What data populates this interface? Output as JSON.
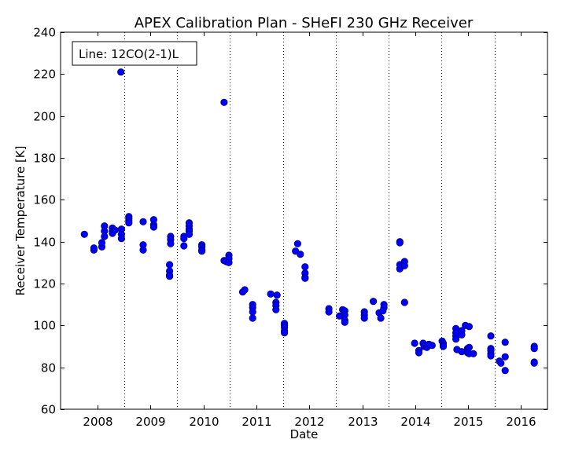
{
  "chart_data": {
    "type": "scatter",
    "title": "APEX Calibration Plan - SHeFI 230 GHz Receiver",
    "xlabel": "Date",
    "ylabel": "Receiver Temperature [K]",
    "annotation": "Line: 12CO(2-1)L",
    "xlim": [
      2007.3,
      2016.5
    ],
    "ylim": [
      60,
      240
    ],
    "x_ticks": [
      2008,
      2009,
      2010,
      2011,
      2012,
      2013,
      2014,
      2015,
      2016
    ],
    "x_tick_labels": [
      "2008",
      "2009",
      "2010",
      "2011",
      "2012",
      "2013",
      "2014",
      "2015",
      "2016"
    ],
    "y_ticks": [
      60,
      80,
      100,
      120,
      140,
      160,
      180,
      200,
      220,
      240
    ],
    "y_tick_labels": [
      "60",
      "80",
      "100",
      "120",
      "140",
      "160",
      "180",
      "200",
      "220",
      "240"
    ],
    "vlines": [
      2008.5,
      2009.5,
      2010.5,
      2011.5,
      2012.5,
      2013.5,
      2014.5,
      2015.5
    ],
    "grid": false,
    "marker_color": "#0000ff",
    "marker_edge_color": "#000080",
    "series": [
      {
        "points": [
          [
            2007.75,
            143.5
          ],
          [
            2007.93,
            136
          ],
          [
            2007.93,
            137
          ],
          [
            2008.08,
            137.5
          ],
          [
            2008.08,
            139.5
          ],
          [
            2008.13,
            147.5
          ],
          [
            2008.13,
            145
          ],
          [
            2008.13,
            142.5
          ],
          [
            2008.28,
            146.5
          ],
          [
            2008.28,
            145
          ],
          [
            2008.28,
            144
          ],
          [
            2008.33,
            145.5
          ],
          [
            2008.44,
            221
          ],
          [
            2008.45,
            146
          ],
          [
            2008.45,
            143.5
          ],
          [
            2008.45,
            141.5
          ],
          [
            2008.59,
            152
          ],
          [
            2008.59,
            151
          ],
          [
            2008.59,
            150
          ],
          [
            2008.59,
            149
          ],
          [
            2008.86,
            149.5
          ],
          [
            2008.86,
            138.5
          ],
          [
            2008.86,
            136
          ],
          [
            2009.06,
            150.5
          ],
          [
            2009.06,
            148
          ],
          [
            2009.06,
            147
          ],
          [
            2009.38,
            142.5
          ],
          [
            2009.38,
            141
          ],
          [
            2009.38,
            139
          ],
          [
            2009.36,
            129
          ],
          [
            2009.36,
            126
          ],
          [
            2009.36,
            124
          ],
          [
            2009.36,
            123.5
          ],
          [
            2009.63,
            142.5
          ],
          [
            2009.63,
            141.5
          ],
          [
            2009.63,
            138
          ],
          [
            2009.73,
            149
          ],
          [
            2009.73,
            147.5
          ],
          [
            2009.73,
            146
          ],
          [
            2009.73,
            145
          ],
          [
            2009.73,
            143.5
          ],
          [
            2009.97,
            138.5
          ],
          [
            2009.97,
            137.5
          ],
          [
            2009.97,
            136
          ],
          [
            2009.97,
            135.5
          ],
          [
            2010.39,
            206.5
          ],
          [
            2010.39,
            131
          ],
          [
            2010.43,
            130.5
          ],
          [
            2010.48,
            133.5
          ],
          [
            2010.48,
            132
          ],
          [
            2010.48,
            130
          ],
          [
            2010.74,
            116
          ],
          [
            2010.78,
            117
          ],
          [
            2010.93,
            110
          ],
          [
            2010.93,
            108.5
          ],
          [
            2010.93,
            106.5
          ],
          [
            2010.93,
            103.5
          ],
          [
            2011.27,
            115
          ],
          [
            2011.39,
            114.5
          ],
          [
            2011.37,
            111
          ],
          [
            2011.37,
            109.5
          ],
          [
            2011.37,
            107.5
          ],
          [
            2011.53,
            101
          ],
          [
            2011.53,
            100
          ],
          [
            2011.53,
            99
          ],
          [
            2011.53,
            97.5
          ],
          [
            2011.53,
            96.5
          ],
          [
            2011.74,
            135.5
          ],
          [
            2011.78,
            139
          ],
          [
            2011.83,
            134
          ],
          [
            2011.92,
            128
          ],
          [
            2011.92,
            125
          ],
          [
            2011.92,
            123
          ],
          [
            2011.92,
            122.5
          ],
          [
            2012.37,
            108
          ],
          [
            2012.37,
            106.5
          ],
          [
            2012.57,
            104.5
          ],
          [
            2012.63,
            107.5
          ],
          [
            2012.67,
            107
          ],
          [
            2012.67,
            105
          ],
          [
            2012.67,
            102.5
          ],
          [
            2012.67,
            101.5
          ],
          [
            2013.04,
            106.5
          ],
          [
            2013.04,
            105
          ],
          [
            2013.04,
            103.5
          ],
          [
            2013.21,
            111.5
          ],
          [
            2013.32,
            106
          ],
          [
            2013.35,
            103.5
          ],
          [
            2013.41,
            110
          ],
          [
            2013.41,
            108.5
          ],
          [
            2013.39,
            107
          ],
          [
            2013.71,
            140
          ],
          [
            2013.71,
            139.5
          ],
          [
            2013.71,
            129
          ],
          [
            2013.71,
            127
          ],
          [
            2013.76,
            128.5
          ],
          [
            2013.8,
            130.5
          ],
          [
            2013.8,
            128.5
          ],
          [
            2013.8,
            111
          ],
          [
            2013.99,
            91.5
          ],
          [
            2014.07,
            88
          ],
          [
            2014.07,
            87
          ],
          [
            2014.15,
            91.5
          ],
          [
            2014.17,
            90
          ],
          [
            2014.22,
            89.5
          ],
          [
            2014.26,
            91
          ],
          [
            2014.32,
            90.5
          ],
          [
            2014.51,
            92.5
          ],
          [
            2014.53,
            91.5
          ],
          [
            2014.53,
            90.5
          ],
          [
            2014.53,
            90
          ],
          [
            2014.77,
            98.5
          ],
          [
            2014.77,
            96.5
          ],
          [
            2014.77,
            95
          ],
          [
            2014.77,
            93.5
          ],
          [
            2014.79,
            88.5
          ],
          [
            2014.88,
            97.5
          ],
          [
            2014.88,
            95.5
          ],
          [
            2014.88,
            87.5
          ],
          [
            2014.95,
            100
          ],
          [
            2014.99,
            89
          ],
          [
            2014.99,
            87
          ],
          [
            2015.02,
            99.5
          ],
          [
            2015.02,
            89.5
          ],
          [
            2015.02,
            86.5
          ],
          [
            2015.1,
            86.5
          ],
          [
            2015.43,
            95
          ],
          [
            2015.43,
            89
          ],
          [
            2015.43,
            88
          ],
          [
            2015.43,
            86.5
          ],
          [
            2015.43,
            85.5
          ],
          [
            2015.59,
            83
          ],
          [
            2015.62,
            82
          ],
          [
            2015.7,
            92
          ],
          [
            2015.7,
            85
          ],
          [
            2015.7,
            78.5
          ],
          [
            2016.25,
            90
          ],
          [
            2016.25,
            89
          ],
          [
            2016.25,
            82.5
          ],
          [
            2016.25,
            82
          ]
        ]
      }
    ]
  }
}
